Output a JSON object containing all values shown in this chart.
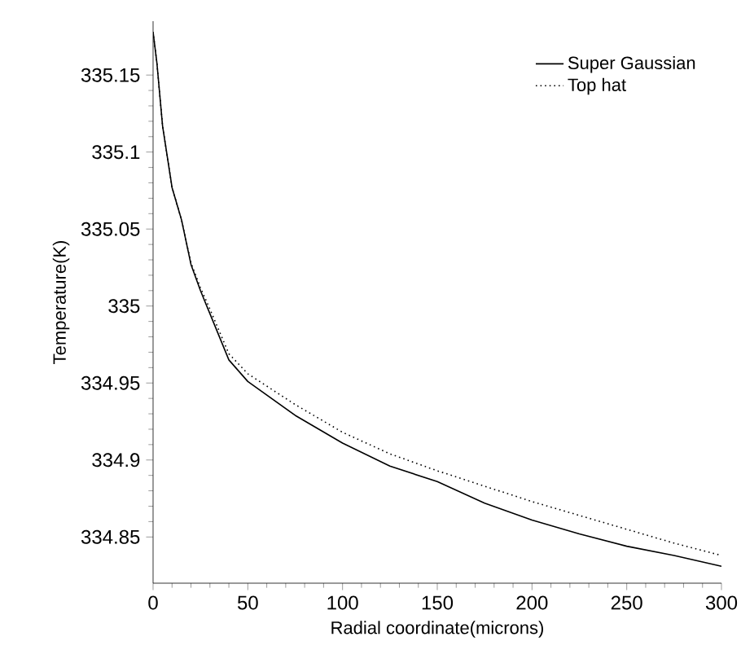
{
  "chart_data": {
    "type": "line",
    "xlabel": "Radial coordinate(microns)",
    "ylabel": "Temperature(K)",
    "xlim": [
      0,
      300
    ],
    "ylim": [
      334.82,
      335.185
    ],
    "xticks": [
      0,
      50,
      100,
      150,
      200,
      250,
      300
    ],
    "yticks": [
      334.85,
      334.9,
      334.95,
      335,
      335.05,
      335.1,
      335.15
    ],
    "grid": false,
    "legend": "top right",
    "x": [
      0,
      2,
      5,
      10,
      15,
      20,
      25,
      30,
      40,
      50,
      75,
      100,
      125,
      150,
      175,
      200,
      225,
      250,
      275,
      300
    ],
    "series": [
      {
        "name": "Super Gaussian",
        "color": "#000000",
        "line_style": "solid",
        "values": [
          335.178,
          335.158,
          335.117,
          335.077,
          335.056,
          335.027,
          335.01,
          334.995,
          334.965,
          334.951,
          334.929,
          334.911,
          334.896,
          334.886,
          334.872,
          334.861,
          334.852,
          334.844,
          334.838,
          334.831
        ]
      },
      {
        "name": "Top hat",
        "color": "#000000",
        "line_style": "dotted",
        "values": [
          335.178,
          335.158,
          335.117,
          335.077,
          335.056,
          335.028,
          335.012,
          334.998,
          334.969,
          334.956,
          334.936,
          334.918,
          334.904,
          334.893,
          334.883,
          334.873,
          334.864,
          334.855,
          334.846,
          334.838
        ]
      }
    ]
  }
}
